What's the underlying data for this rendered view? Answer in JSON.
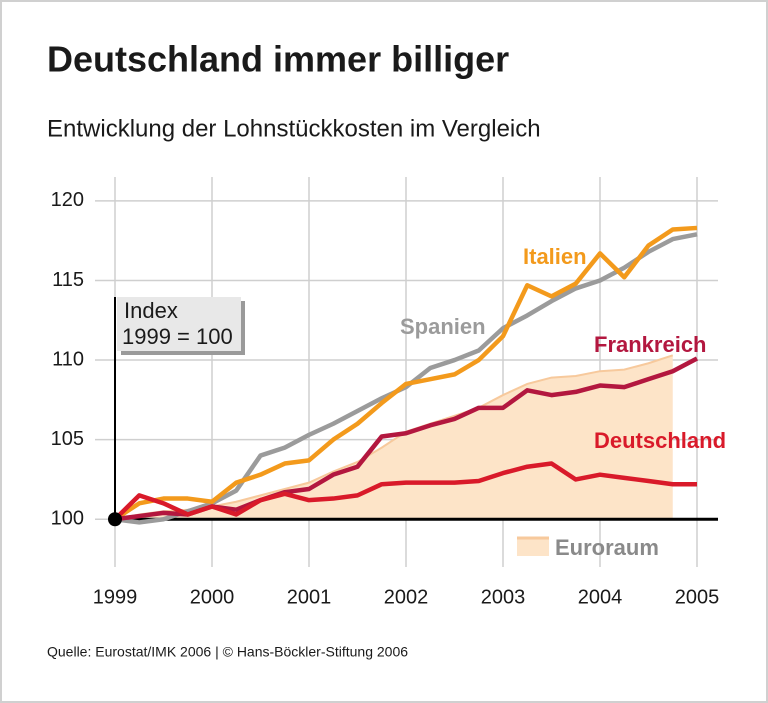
{
  "chart_data": {
    "type": "line",
    "title": "Deutschland immer billiger",
    "subtitle": "Entwicklung der Lohnstückkosten im Vergleich",
    "annotation": [
      "Index",
      "1999 = 100"
    ],
    "source": "Quelle: Eurostat/IMK 2006 | © Hans-Böckler-Stiftung 2006",
    "x": [
      1999,
      1999.25,
      1999.5,
      1999.75,
      2000,
      2000.25,
      2000.5,
      2000.75,
      2001,
      2001.25,
      2001.5,
      2001.75,
      2002,
      2002.25,
      2002.5,
      2002.75,
      2003,
      2003.25,
      2003.5,
      2003.75,
      2004,
      2004.25,
      2004.5,
      2004.75,
      2005
    ],
    "xlim": [
      1999,
      2005
    ],
    "xticks": [
      1999,
      2000,
      2001,
      2002,
      2003,
      2004,
      2005
    ],
    "ylim": [
      97,
      121.5
    ],
    "yticks": [
      100,
      105,
      110,
      115,
      120
    ],
    "grid": true,
    "series": [
      {
        "name": "Euroraum",
        "style": "area",
        "color": "#fde4c8",
        "values": [
          100,
          100.3,
          100.5,
          100.6,
          100.8,
          101.1,
          101.5,
          101.9,
          102.3,
          103.0,
          103.6,
          104.5,
          105.5,
          106.0,
          106.5,
          107.0,
          107.8,
          108.5,
          108.9,
          109.0,
          109.3,
          109.4,
          109.8,
          110.3,
          null
        ]
      },
      {
        "name": "Spanien",
        "style": "line",
        "color": "#9b9b9b",
        "values": [
          100,
          99.8,
          100.0,
          100.5,
          101.0,
          101.8,
          104.0,
          104.5,
          105.3,
          106.0,
          106.8,
          107.6,
          108.3,
          109.5,
          110.0,
          110.6,
          112.0,
          112.8,
          113.7,
          114.5,
          115.0,
          115.8,
          116.8,
          117.6,
          117.9
        ]
      },
      {
        "name": "Italien",
        "style": "line",
        "color": "#f39a1c",
        "values": [
          100,
          101.0,
          101.3,
          101.3,
          101.1,
          102.3,
          102.8,
          103.5,
          103.7,
          105.0,
          106.0,
          107.3,
          108.5,
          108.8,
          109.1,
          110.0,
          111.5,
          114.7,
          114.0,
          114.8,
          116.7,
          115.2,
          117.2,
          118.2,
          118.3
        ]
      },
      {
        "name": "Frankreich",
        "style": "line",
        "color": "#b3173f",
        "values": [
          100,
          100.2,
          100.4,
          100.3,
          100.8,
          100.6,
          101.2,
          101.7,
          101.9,
          102.8,
          103.3,
          105.2,
          105.4,
          105.9,
          106.3,
          107.0,
          107.0,
          108.1,
          107.8,
          108.0,
          108.4,
          108.3,
          108.8,
          109.3,
          110.1
        ]
      },
      {
        "name": "Deutschland",
        "style": "line",
        "color": "#d91a2a",
        "values": [
          100,
          101.5,
          101.0,
          100.3,
          100.8,
          100.3,
          101.2,
          101.6,
          101.2,
          101.3,
          101.5,
          102.2,
          102.3,
          102.3,
          102.3,
          102.4,
          102.9,
          103.3,
          103.5,
          102.5,
          102.8,
          102.6,
          102.4,
          102.2,
          102.2
        ]
      }
    ]
  }
}
